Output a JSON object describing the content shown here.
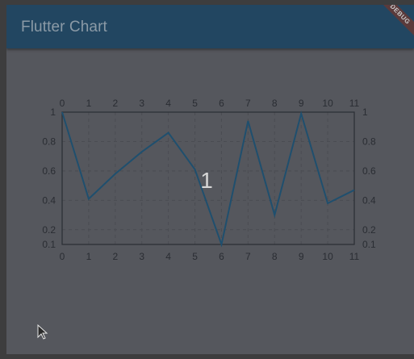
{
  "app": {
    "title": "Flutter Chart",
    "debug_banner": "DEBUG"
  },
  "colors": {
    "appbar": "#224661",
    "body": "#55575d",
    "line": "#1f4f6e",
    "grid": "#4a4c52",
    "axis": "#2a2d33"
  },
  "chart_data": {
    "type": "line",
    "x": [
      0,
      1,
      2,
      3,
      4,
      5,
      6,
      7,
      8,
      9,
      10,
      11
    ],
    "series": [
      {
        "values": [
          1.0,
          0.41,
          0.58,
          0.73,
          0.86,
          0.61,
          0.1,
          0.94,
          0.3,
          0.99,
          0.38,
          0.47
        ]
      }
    ],
    "x_ticks": [
      "0",
      "1",
      "2",
      "3",
      "4",
      "5",
      "6",
      "7",
      "8",
      "9",
      "10",
      "11"
    ],
    "y_ticks": [
      {
        "value": 1,
        "label": "1"
      },
      {
        "value": 0.8,
        "label": "0.8"
      },
      {
        "value": 0.6,
        "label": "0.6"
      },
      {
        "value": 0.4,
        "label": "0.4"
      },
      {
        "value": 0.2,
        "label": "0.2"
      },
      {
        "value": 0.1,
        "label": "0.1"
      }
    ],
    "xlim": [
      0,
      11
    ],
    "ylim": [
      0.1,
      1
    ],
    "grid": true,
    "axes": "all-four-sides",
    "center_label": "1"
  }
}
